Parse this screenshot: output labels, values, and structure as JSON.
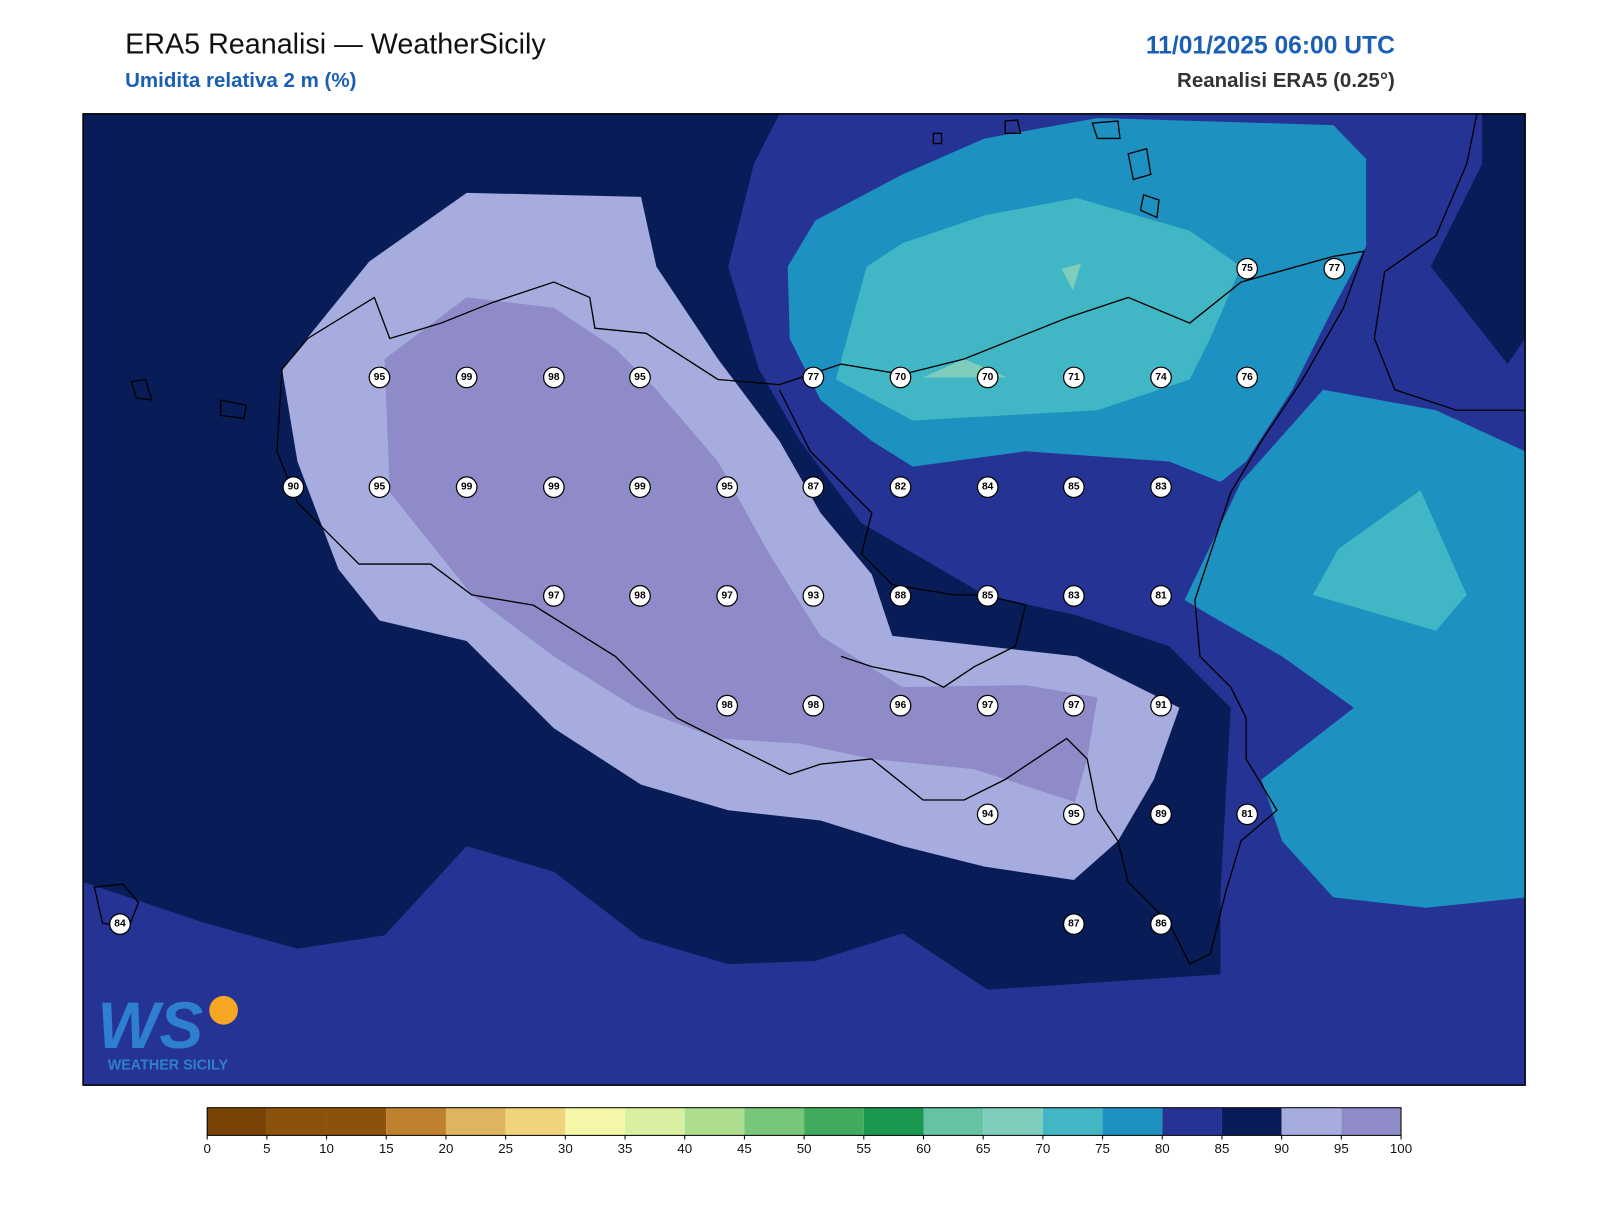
{
  "header": {
    "title": "ERA5 Reanalisi — WeatherSicily",
    "subtitle": "Umidita relativa 2 m (%)",
    "datetime": "11/01/2025 06:00 UTC",
    "source": "Reanalisi ERA5 (0.25°)"
  },
  "stations": [
    75,
    77,
    95,
    99,
    98,
    95,
    77,
    70,
    70,
    71,
    74,
    76,
    90,
    95,
    99,
    99,
    99,
    95,
    87,
    82,
    84,
    85,
    83,
    97,
    98,
    97,
    93,
    88,
    85,
    83,
    81,
    98,
    98,
    96,
    97,
    97,
    91,
    94,
    95,
    89,
    81,
    84,
    87,
    86
  ],
  "colorbar": {
    "ticks": [
      0,
      5,
      10,
      15,
      20,
      25,
      30,
      35,
      40,
      45,
      50,
      55,
      60,
      65,
      70,
      75,
      80,
      85,
      90,
      95,
      100
    ],
    "colors": [
      "#7a4306",
      "#8c510a",
      "#8c510a",
      "#bf812d",
      "#dfb460",
      "#f0d47d",
      "#f6f6a8",
      "#d9f0a3",
      "#addd8e",
      "#78c679",
      "#41ab5d",
      "#1a9850",
      "#66c2a5",
      "#7fcdbb",
      "#41b6c4",
      "#1d91c0",
      "#253494",
      "#081d58",
      "#a6acdd",
      "#8e8bc8"
    ]
  },
  "logo": {
    "letters": "WS",
    "name": "WEATHER SICILY"
  }
}
